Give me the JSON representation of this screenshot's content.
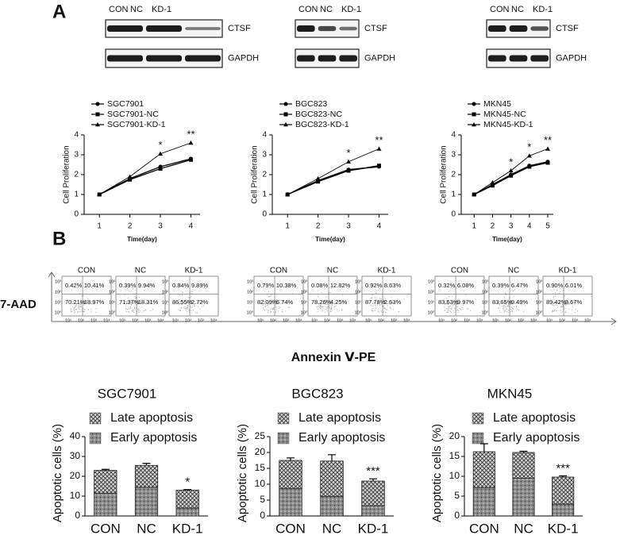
{
  "panel_labels": [
    "A",
    "B"
  ],
  "blots": [
    {
      "lanes": [
        "CON",
        "NC",
        "KD-1"
      ],
      "rows": [
        "CTSF",
        "GAPDH"
      ]
    },
    {
      "lanes": [
        "CON",
        "NC",
        "KD-1"
      ],
      "rows": [
        "CTSF",
        "GAPDH"
      ]
    },
    {
      "lanes": [
        "CON",
        "NC",
        "KD-1"
      ],
      "rows": [
        "CTSF",
        "GAPDH"
      ]
    }
  ],
  "flow": {
    "ylabel": "7-AAD",
    "xlabel": "Annexin Ⅴ-PE",
    "ticks": [
      "10⁰",
      "10¹",
      "10²",
      "10³",
      "10⁴"
    ],
    "groups": [
      {
        "plots": [
          {
            "label": "CON",
            "quadrants": [
              "0.42%",
              "10.41%",
              "70.21%",
              "18.97%"
            ]
          },
          {
            "label": "NC",
            "quadrants": [
              "0.39%",
              "9.94%",
              "71.37%",
              "18.31%"
            ]
          },
          {
            "label": "KD-1",
            "quadrants": [
              "0.84%",
              "9.89%",
              "86.55%",
              "2.72%"
            ]
          }
        ]
      },
      {
        "plots": [
          {
            "label": "CON",
            "quadrants": [
              "0.79%",
              "10.38%",
              "82.09%",
              "6.74%"
            ]
          },
          {
            "label": "NC",
            "quadrants": [
              "0.08%",
              "12.82%",
              "78.26%",
              "4.25%"
            ]
          },
          {
            "label": "KD-1",
            "quadrants": [
              "0.92%",
              "8.63%",
              "87.78%",
              "2.63%"
            ]
          }
        ]
      },
      {
        "plots": [
          {
            "label": "CON",
            "quadrants": [
              "0.32%",
              "6.08%",
              "83.63%",
              "9.97%"
            ]
          },
          {
            "label": "NC",
            "quadrants": [
              "0.39%",
              "6.47%",
              "83.65%",
              "9.49%"
            ]
          },
          {
            "label": "KD-1",
            "quadrants": [
              "0.90%",
              "6.01%",
              "89.42%",
              "3.67%"
            ]
          }
        ]
      }
    ]
  },
  "chart_data": [
    {
      "type": "line",
      "x": [
        1,
        2,
        3,
        4
      ],
      "xlabel": "Time(day)",
      "ylabel": "Cell Proliferation",
      "xlim": [
        0.5,
        4.3
      ],
      "xticks": [
        1,
        2,
        3,
        4
      ],
      "ylim": [
        0,
        4
      ],
      "yticks": [
        0,
        1,
        2,
        3,
        4
      ],
      "series": [
        {
          "name": "SGC7901",
          "color": "#000000",
          "marker": "circle",
          "values": [
            1,
            1.8,
            2.4,
            2.8
          ]
        },
        {
          "name": "SGC7901-NC",
          "color": "#000000",
          "marker": "square",
          "values": [
            1,
            1.75,
            2.3,
            2.75
          ]
        },
        {
          "name": "SGC7901-KD-1",
          "color": "#000000",
          "marker": "triangle",
          "values": [
            1,
            1.9,
            3.05,
            3.6
          ]
        }
      ],
      "annotations": [
        {
          "text": "*",
          "x": 3
        },
        {
          "text": "**",
          "x": 4
        }
      ]
    },
    {
      "type": "line",
      "x": [
        1,
        2,
        3,
        4
      ],
      "xlabel": "Time(day)",
      "ylabel": "Cell Proliferation",
      "xlim": [
        0.5,
        4.3
      ],
      "xticks": [
        1,
        2,
        3,
        4
      ],
      "ylim": [
        0,
        4
      ],
      "yticks": [
        0,
        1,
        2,
        3,
        4
      ],
      "series": [
        {
          "name": "BGC823",
          "color": "#000000",
          "marker": "circle",
          "values": [
            1,
            1.7,
            2.25,
            2.4
          ]
        },
        {
          "name": "BGC823-NC",
          "color": "#000000",
          "marker": "square",
          "values": [
            1,
            1.65,
            2.2,
            2.45
          ]
        },
        {
          "name": "BGC823-KD-1",
          "color": "#000000",
          "marker": "triangle",
          "values": [
            1,
            1.8,
            2.65,
            3.3
          ]
        }
      ],
      "annotations": [
        {
          "text": "*",
          "x": 3
        },
        {
          "text": "**",
          "x": 4
        }
      ]
    },
    {
      "type": "line",
      "x": [
        1,
        2,
        3,
        4,
        5
      ],
      "xlabel": "Time(day)",
      "ylabel": "Cell Proliferation",
      "xlim": [
        0.3,
        5.3
      ],
      "xticks": [
        1,
        2,
        3,
        4,
        5
      ],
      "ylim": [
        0,
        4
      ],
      "yticks": [
        0,
        1,
        2,
        3,
        4
      ],
      "series": [
        {
          "name": "MKN45",
          "color": "#000000",
          "marker": "circle",
          "values": [
            1,
            1.5,
            2.0,
            2.45,
            2.65
          ]
        },
        {
          "name": "MKN45-NC",
          "color": "#000000",
          "marker": "square",
          "values": [
            1,
            1.45,
            1.95,
            2.4,
            2.6
          ]
        },
        {
          "name": "MKN45-KD-1",
          "color": "#000000",
          "marker": "triangle",
          "values": [
            1,
            1.6,
            2.2,
            2.95,
            3.3
          ]
        }
      ],
      "annotations": [
        {
          "text": "*",
          "x": 3
        },
        {
          "text": "*",
          "x": 4
        },
        {
          "text": "**",
          "x": 5
        }
      ]
    },
    {
      "type": "stacked_bar",
      "title": "SGC7901",
      "ylabel": "Apoptotic cells (%)",
      "categories": [
        "CON",
        "NC",
        "KD-1"
      ],
      "ylim": [
        0,
        40
      ],
      "yticks": [
        0,
        10,
        20,
        30,
        40
      ],
      "series": [
        {
          "name": "Early apoptosis",
          "color": "#8c8c8c",
          "pattern": "dots",
          "values": [
            11.5,
            14.5,
            4
          ]
        },
        {
          "name": "Late apoptosis",
          "color": "#d4d4d4",
          "pattern": "crosshatch",
          "values": [
            11.5,
            11,
            9
          ],
          "errors": [
            0.5,
            1,
            0.3
          ]
        }
      ],
      "annotations": [
        {
          "text": "*",
          "category": "KD-1"
        }
      ]
    },
    {
      "type": "stacked_bar",
      "title": "BGC823",
      "ylabel": "Apoptotic cells (%)",
      "categories": [
        "CON",
        "NC",
        "KD-1"
      ],
      "ylim": [
        0,
        25
      ],
      "yticks": [
        0,
        5,
        10,
        15,
        20,
        25
      ],
      "series": [
        {
          "name": "Early apoptosis",
          "color": "#8c8c8c",
          "pattern": "dots",
          "values": [
            8.7,
            6.2,
            3.2
          ]
        },
        {
          "name": "Late apoptosis",
          "color": "#d4d4d4",
          "pattern": "crosshatch",
          "values": [
            8.8,
            11.1,
            7.8
          ],
          "errors": [
            0.8,
            2,
            0.7
          ]
        }
      ],
      "annotations": [
        {
          "text": "***",
          "category": "KD-1"
        }
      ]
    },
    {
      "type": "stacked_bar",
      "title": "MKN45",
      "ylabel": "Apoptotic cells (%)",
      "categories": [
        "CON",
        "NC",
        "KD-1"
      ],
      "ylim": [
        0,
        20
      ],
      "yticks": [
        0,
        5,
        10,
        15,
        20
      ],
      "series": [
        {
          "name": "Early apoptosis",
          "color": "#8c8c8c",
          "pattern": "dots",
          "values": [
            7.2,
            9.5,
            3
          ]
        },
        {
          "name": "Late apoptosis",
          "color": "#d4d4d4",
          "pattern": "crosshatch",
          "values": [
            9,
            6.5,
            6.8
          ],
          "errors": [
            2,
            0.3,
            0.3
          ]
        }
      ],
      "annotations": [
        {
          "text": "***",
          "category": "KD-1"
        }
      ]
    }
  ]
}
